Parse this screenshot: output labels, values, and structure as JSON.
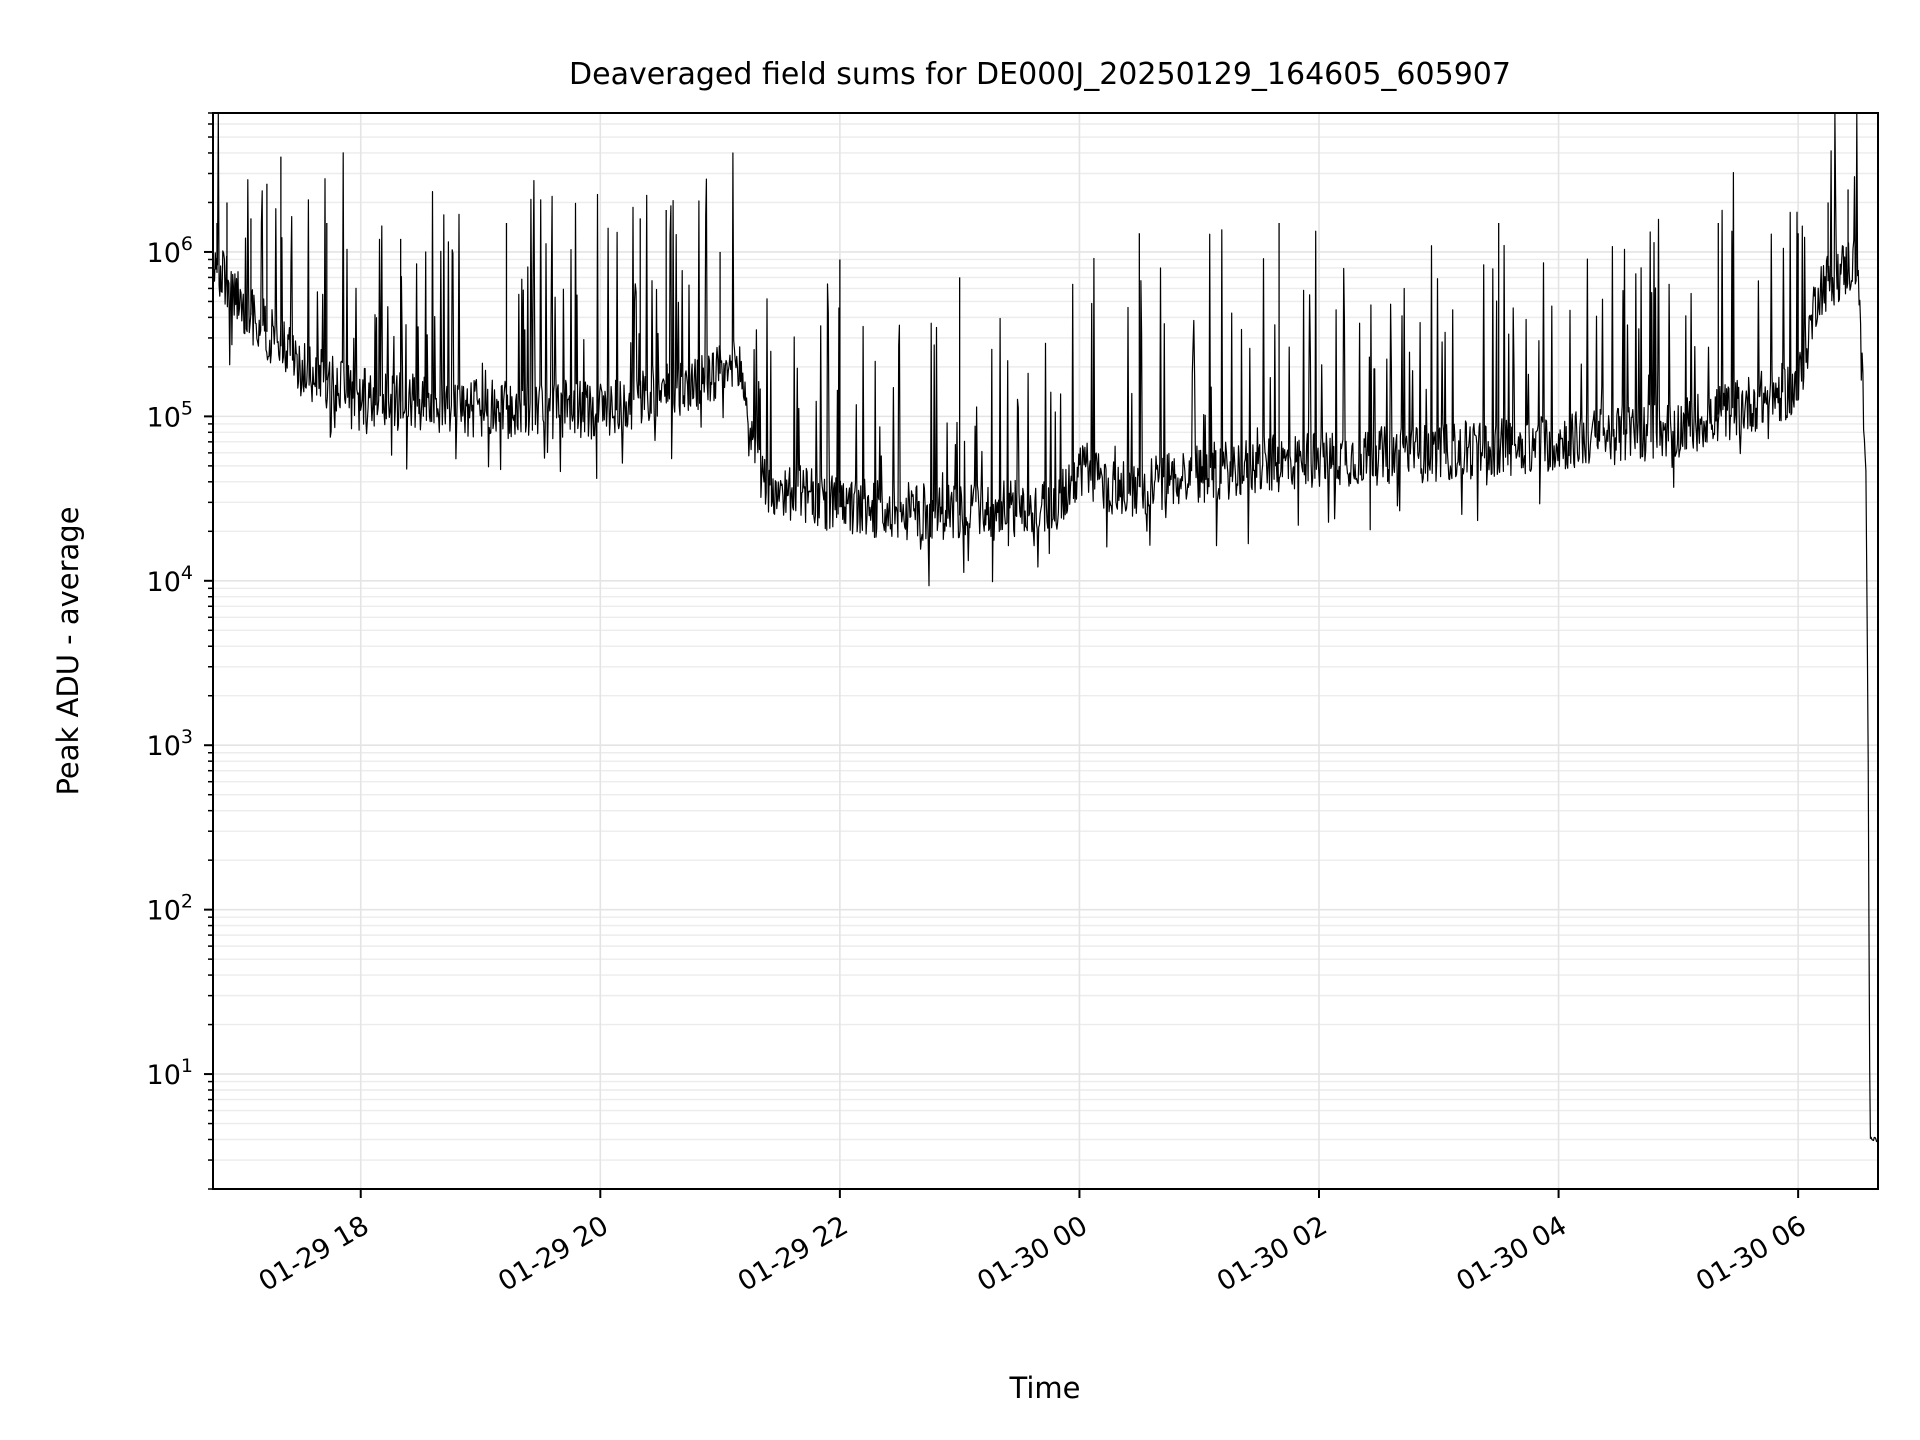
{
  "chart_data": {
    "type": "line",
    "title": "Deaveraged field sums for DE000J_20250129_164605_605907",
    "xlabel": "Time",
    "ylabel": "Peak ADU - average",
    "x_scale": "time",
    "y_scale": "log",
    "xlim": [
      "2025-01-29 16:46",
      "2025-01-30 06:40"
    ],
    "ylim": [
      2,
      7000000
    ],
    "grid": true,
    "legend": "none",
    "line_color": "#000000",
    "x_ticks": [
      {
        "value": "2025-01-29 18:00",
        "label": "01-29 18"
      },
      {
        "value": "2025-01-29 20:00",
        "label": "01-29 20"
      },
      {
        "value": "2025-01-29 22:00",
        "label": "01-29 22"
      },
      {
        "value": "2025-01-30 00:00",
        "label": "01-30 00"
      },
      {
        "value": "2025-01-30 02:00",
        "label": "01-30 02"
      },
      {
        "value": "2025-01-30 04:00",
        "label": "01-30 04"
      },
      {
        "value": "2025-01-30 06:00",
        "label": "01-30 06"
      }
    ],
    "y_ticks": [
      {
        "value": 10,
        "base": "10",
        "exp": "1"
      },
      {
        "value": 100,
        "base": "10",
        "exp": "2"
      },
      {
        "value": 1000,
        "base": "10",
        "exp": "3"
      },
      {
        "value": 10000,
        "base": "10",
        "exp": "4"
      },
      {
        "value": 100000,
        "base": "10",
        "exp": "5"
      },
      {
        "value": 1000000,
        "base": "10",
        "exp": "6"
      }
    ],
    "series": [
      {
        "baseline": [
          {
            "x": "2025-01-29 16:46",
            "y": 800000
          },
          {
            "x": "2025-01-29 17:06",
            "y": 400000
          },
          {
            "x": "2025-01-29 17:30",
            "y": 200000
          },
          {
            "x": "2025-01-29 18:00",
            "y": 130000
          },
          {
            "x": "2025-01-29 19:00",
            "y": 110000
          },
          {
            "x": "2025-01-29 20:00",
            "y": 110000
          },
          {
            "x": "2025-01-29 20:40",
            "y": 150000
          },
          {
            "x": "2025-01-29 21:10",
            "y": 200000
          },
          {
            "x": "2025-01-29 21:20",
            "y": 40000
          },
          {
            "x": "2025-01-29 22:00",
            "y": 28000
          },
          {
            "x": "2025-01-29 23:00",
            "y": 25000
          },
          {
            "x": "2025-01-29 23:50",
            "y": 30000
          },
          {
            "x": "2025-01-30 00:00",
            "y": 50000
          },
          {
            "x": "2025-01-30 00:20",
            "y": 35000
          },
          {
            "x": "2025-01-30 01:00",
            "y": 45000
          },
          {
            "x": "2025-01-30 02:00",
            "y": 55000
          },
          {
            "x": "2025-01-30 03:00",
            "y": 60000
          },
          {
            "x": "2025-01-30 04:00",
            "y": 70000
          },
          {
            "x": "2025-01-30 05:00",
            "y": 85000
          },
          {
            "x": "2025-01-30 06:00",
            "y": 150000
          },
          {
            "x": "2025-01-30 06:10",
            "y": 600000
          },
          {
            "x": "2025-01-30 06:30",
            "y": 900000
          },
          {
            "x": "2025-01-30 06:33",
            "y": 80000
          },
          {
            "x": "2025-01-30 06:34",
            "y": 45000
          },
          {
            "x": "2025-01-30 06:35",
            "y": 1200
          },
          {
            "x": "2025-01-30 06:36",
            "y": 4
          },
          {
            "x": "2025-01-30 06:40",
            "y": 4
          }
        ],
        "spikes": [
          {
            "x": "2025-01-29 16:48",
            "y": 1500000
          },
          {
            "x": "2025-01-29 16:53",
            "y": 2000000
          },
          {
            "x": "2025-01-29 17:05",
            "y": 1600000
          },
          {
            "x": "2025-01-29 17:13",
            "y": 2600000
          },
          {
            "x": "2025-01-29 17:20",
            "y": 3800000
          },
          {
            "x": "2025-01-29 17:43",
            "y": 1500000
          },
          {
            "x": "2025-01-29 18:20",
            "y": 1200000
          },
          {
            "x": "2025-01-29 19:13",
            "y": 1500000
          },
          {
            "x": "2025-01-29 20:20",
            "y": 1600000
          },
          {
            "x": "2025-01-29 20:33",
            "y": 1800000
          },
          {
            "x": "2025-01-29 21:00",
            "y": 1000000
          },
          {
            "x": "2025-01-29 22:00",
            "y": 900000
          },
          {
            "x": "2025-01-29 23:00",
            "y": 700000
          },
          {
            "x": "2025-01-30 00:30",
            "y": 1300000
          },
          {
            "x": "2025-01-30 01:40",
            "y": 1500000
          },
          {
            "x": "2025-01-30 03:30",
            "y": 1500000
          },
          {
            "x": "2025-01-30 05:20",
            "y": 1500000
          },
          {
            "x": "2025-01-30 06:00",
            "y": 1300000
          },
          {
            "x": "2025-01-30 06:15",
            "y": 2000000
          },
          {
            "x": "2025-01-30 06:25",
            "y": 2400000
          }
        ]
      }
    ]
  }
}
